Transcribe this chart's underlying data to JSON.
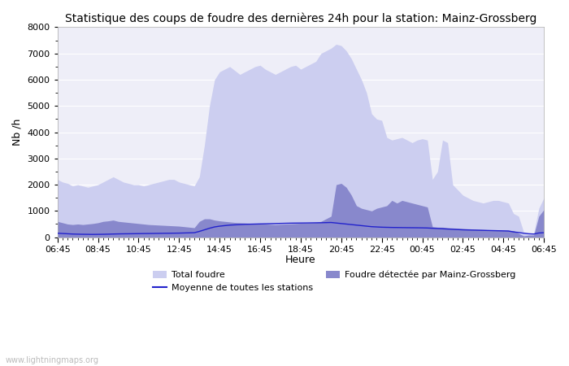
{
  "title": "Statistique des coups de foudre des dernières 24h pour la station: Mainz-Grossberg",
  "xlabel": "Heure",
  "ylabel": "Nb /h",
  "watermark": "www.lightningmaps.org",
  "ylim": [
    0,
    8000
  ],
  "yticks": [
    0,
    1000,
    2000,
    3000,
    4000,
    5000,
    6000,
    7000,
    8000
  ],
  "x_labels": [
    "06:45",
    "08:45",
    "10:45",
    "12:45",
    "14:45",
    "16:45",
    "18:45",
    "20:45",
    "22:45",
    "00:45",
    "02:45",
    "04:45",
    "06:45"
  ],
  "color_total": "#cccef0",
  "color_detected": "#8888cc",
  "color_mean": "#2222cc",
  "bg_color": "#eeeef8",
  "n_points": 97,
  "total_foudre": [
    2200,
    2100,
    2050,
    1950,
    2000,
    1950,
    1900,
    1950,
    2000,
    2100,
    2200,
    2300,
    2200,
    2100,
    2050,
    2000,
    2000,
    1950,
    2000,
    2050,
    2100,
    2150,
    2200,
    2200,
    2100,
    2050,
    2000,
    1950,
    2300,
    3500,
    5000,
    6000,
    6300,
    6400,
    6500,
    6350,
    6200,
    6300,
    6400,
    6500,
    6550,
    6400,
    6300,
    6200,
    6300,
    6400,
    6500,
    6550,
    6400,
    6500,
    6600,
    6700,
    7000,
    7100,
    7200,
    7350,
    7300,
    7100,
    6800,
    6400,
    6000,
    5500,
    4700,
    4500,
    4450,
    3800,
    3700,
    3750,
    3800,
    3700,
    3600,
    3700,
    3750,
    3700,
    2200,
    2500,
    3700,
    3600,
    2000,
    1800,
    1600,
    1500,
    1400,
    1350,
    1300,
    1350,
    1400,
    1400,
    1350,
    1300,
    900,
    800,
    200,
    150,
    150,
    1100,
    1500
  ],
  "detected": [
    600,
    550,
    500,
    480,
    500,
    480,
    500,
    520,
    550,
    600,
    620,
    650,
    600,
    580,
    560,
    540,
    520,
    500,
    480,
    470,
    460,
    450,
    440,
    430,
    420,
    400,
    380,
    360,
    600,
    700,
    700,
    650,
    620,
    600,
    580,
    560,
    550,
    540,
    530,
    520,
    510,
    500,
    490,
    480,
    490,
    500,
    510,
    520,
    530,
    540,
    550,
    560,
    600,
    700,
    800,
    2000,
    2050,
    1900,
    1600,
    1200,
    1100,
    1050,
    1000,
    1100,
    1150,
    1200,
    1400,
    1300,
    1400,
    1350,
    1300,
    1250,
    1200,
    1150,
    400,
    380,
    380,
    360,
    350,
    340,
    330,
    320,
    310,
    300,
    290,
    280,
    280,
    280,
    270,
    260,
    250,
    150,
    50,
    80,
    80,
    800,
    1050
  ],
  "mean_line": [
    150,
    140,
    130,
    120,
    115,
    110,
    108,
    105,
    108,
    110,
    115,
    120,
    125,
    128,
    130,
    132,
    135,
    138,
    140,
    142,
    145,
    148,
    150,
    152,
    155,
    160,
    165,
    170,
    220,
    280,
    340,
    390,
    420,
    440,
    460,
    470,
    480,
    490,
    495,
    500,
    505,
    510,
    515,
    520,
    525,
    530,
    535,
    538,
    540,
    542,
    545,
    548,
    550,
    555,
    560,
    540,
    520,
    500,
    480,
    460,
    440,
    420,
    400,
    390,
    380,
    375,
    370,
    368,
    365,
    362,
    360,
    358,
    355,
    350,
    340,
    330,
    320,
    310,
    300,
    290,
    280,
    275,
    270,
    265,
    260,
    255,
    250,
    245,
    240,
    235,
    200,
    180,
    150,
    130,
    120,
    160,
    170
  ],
  "legend_total_label": "Total foudre",
  "legend_detected_label": "Foudre détectée par Mainz-Grossberg",
  "legend_mean_label": "Moyenne de toutes les stations"
}
